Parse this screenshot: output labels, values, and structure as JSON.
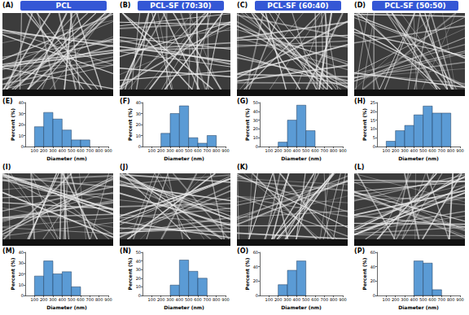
{
  "sem_images": [
    {
      "label": "(A)",
      "title": "PCL"
    },
    {
      "label": "(B)",
      "title": "PCL-SF (70:30)"
    },
    {
      "label": "(C)",
      "title": "PCL-SF (60:40)"
    },
    {
      "label": "(D)",
      "title": "PCL-SF (50:50)"
    },
    {
      "label": "(I)"
    },
    {
      "label": "(J)"
    },
    {
      "label": "(K)"
    },
    {
      "label": "(L)"
    }
  ],
  "chart_data": [
    {
      "type": "histogram",
      "label": "(E)",
      "bins": [
        100,
        200,
        300,
        400,
        500,
        600,
        700
      ],
      "counts": [
        18,
        31,
        25,
        15,
        6,
        6
      ],
      "color": "#5b9bd5",
      "xlabel": "Diameter (nm)",
      "ylabel": "Percent (%)",
      "xlim": [
        0,
        900
      ],
      "xticks": [
        100,
        200,
        300,
        400,
        500,
        600,
        700,
        800,
        900
      ],
      "ylim": [
        0,
        40
      ],
      "yticks": [
        0,
        10,
        20,
        30,
        40
      ]
    },
    {
      "type": "histogram",
      "label": "(F)",
      "bins": [
        200,
        300,
        400,
        500,
        600,
        700,
        800
      ],
      "counts": [
        12,
        30,
        37,
        8,
        3,
        10
      ],
      "color": "#5b9bd5",
      "xlabel": "Diameter (nm)",
      "ylabel": "Percent (%)",
      "xlim": [
        0,
        900
      ],
      "xticks": [
        100,
        200,
        300,
        400,
        500,
        600,
        700,
        800,
        900
      ],
      "ylim": [
        0,
        40
      ],
      "yticks": [
        0,
        10,
        20,
        30,
        40
      ]
    },
    {
      "type": "histogram",
      "label": "(G)",
      "bins": [
        200,
        300,
        400,
        500,
        600
      ],
      "counts": [
        5,
        30,
        47,
        18
      ],
      "color": "#5b9bd5",
      "xlabel": "Diameter (nm)",
      "ylabel": "Percent (%)",
      "xlim": [
        0,
        900
      ],
      "xticks": [
        100,
        200,
        300,
        400,
        500,
        600,
        700,
        800,
        900
      ],
      "ylim": [
        0,
        50
      ],
      "yticks": [
        0,
        10,
        20,
        30,
        40,
        50
      ]
    },
    {
      "type": "histogram",
      "label": "(H)",
      "bins": [
        100,
        200,
        300,
        400,
        500,
        600,
        700,
        800
      ],
      "counts": [
        3,
        9,
        12,
        18,
        23,
        19,
        19
      ],
      "color": "#5b9bd5",
      "xlabel": "Diameter (nm)",
      "ylabel": "Percent (%)",
      "xlim": [
        0,
        900
      ],
      "xticks": [
        100,
        200,
        300,
        400,
        500,
        600,
        700,
        800,
        900
      ],
      "ylim": [
        0,
        25
      ],
      "yticks": [
        0,
        5,
        10,
        15,
        20,
        25
      ]
    },
    {
      "type": "histogram",
      "label": "(M)",
      "bins": [
        100,
        200,
        300,
        400,
        500,
        600
      ],
      "counts": [
        18,
        32,
        20,
        22,
        8
      ],
      "color": "#5b9bd5",
      "xlabel": "Diameter (nm)",
      "ylabel": "Percent (%)",
      "xlim": [
        0,
        900
      ],
      "xticks": [
        100,
        200,
        300,
        400,
        500,
        600,
        700,
        800,
        900
      ],
      "ylim": [
        0,
        40
      ],
      "yticks": [
        0,
        10,
        20,
        30,
        40
      ]
    },
    {
      "type": "histogram",
      "label": "(N)",
      "bins": [
        300,
        400,
        500,
        600,
        700
      ],
      "counts": [
        12,
        41,
        28,
        20
      ],
      "color": "#5b9bd5",
      "xlabel": "Diameter (nm)",
      "ylabel": "Percent (%)",
      "xlim": [
        0,
        900
      ],
      "xticks": [
        100,
        200,
        300,
        400,
        500,
        600,
        700,
        800,
        900
      ],
      "ylim": [
        0,
        50
      ],
      "yticks": [
        0,
        10,
        20,
        30,
        40,
        50
      ]
    },
    {
      "type": "histogram",
      "label": "(O)",
      "bins": [
        200,
        300,
        400,
        500
      ],
      "counts": [
        15,
        35,
        48
      ],
      "color": "#5b9bd5",
      "xlabel": "Diameter (nm)",
      "ylabel": "Percent (%)",
      "xlim": [
        0,
        900
      ],
      "xticks": [
        100,
        200,
        300,
        400,
        500,
        600,
        700,
        800,
        900
      ],
      "ylim": [
        0,
        60
      ],
      "yticks": [
        0,
        20,
        40,
        60
      ]
    },
    {
      "type": "histogram",
      "label": "(P)",
      "bins": [
        400,
        500,
        600,
        700
      ],
      "counts": [
        48,
        45,
        8
      ],
      "color": "#5b9bd5",
      "xlabel": "Diameter (nm)",
      "ylabel": "Percent (%)",
      "xlim": [
        0,
        900
      ],
      "xticks": [
        100,
        200,
        300,
        400,
        500,
        600,
        700,
        800,
        900
      ],
      "ylim": [
        0,
        60
      ],
      "yticks": [
        0,
        20,
        40,
        60
      ]
    }
  ]
}
